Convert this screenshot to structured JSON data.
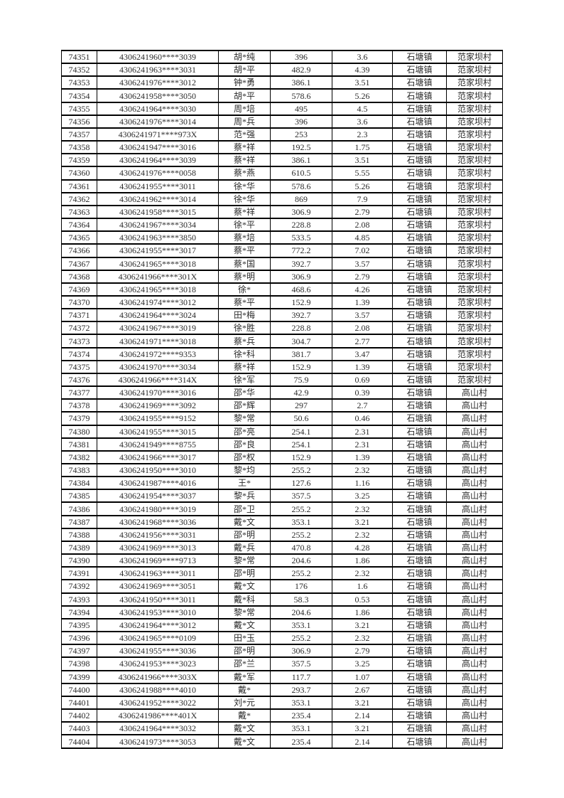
{
  "page": {
    "background_color": "#ffffff",
    "text_color": "#2b2b2b",
    "border_color": "#000000"
  },
  "table": {
    "column_names": [
      "serial-number",
      "id-number",
      "name",
      "amount",
      "secondary-value",
      "town",
      "village"
    ],
    "rows": [
      [
        "74351",
        "4306241960****3039",
        "胡*纯",
        "396",
        "3.6",
        "石塘镇",
        "范家坝村"
      ],
      [
        "74352",
        "4306241963****3031",
        "胡*平",
        "482.9",
        "4.39",
        "石塘镇",
        "范家坝村"
      ],
      [
        "74353",
        "4306241976****3012",
        "钟*勇",
        "386.1",
        "3.51",
        "石塘镇",
        "范家坝村"
      ],
      [
        "74354",
        "4306241958****3050",
        "胡*平",
        "578.6",
        "5.26",
        "石塘镇",
        "范家坝村"
      ],
      [
        "74355",
        "4306241964****3030",
        "周*培",
        "495",
        "4.5",
        "石塘镇",
        "范家坝村"
      ],
      [
        "74356",
        "4306241976****3014",
        "周*兵",
        "396",
        "3.6",
        "石塘镇",
        "范家坝村"
      ],
      [
        "74357",
        "4306241971****973X",
        "范*强",
        "253",
        "2.3",
        "石塘镇",
        "范家坝村"
      ],
      [
        "74358",
        "4306241947****3016",
        "蔡*祥",
        "192.5",
        "1.75",
        "石塘镇",
        "范家坝村"
      ],
      [
        "74359",
        "4306241964****3039",
        "蔡*祥",
        "386.1",
        "3.51",
        "石塘镇",
        "范家坝村"
      ],
      [
        "74360",
        "4306241976****0058",
        "蔡*燕",
        "610.5",
        "5.55",
        "石塘镇",
        "范家坝村"
      ],
      [
        "74361",
        "4306241955****3011",
        "徐*华",
        "578.6",
        "5.26",
        "石塘镇",
        "范家坝村"
      ],
      [
        "74362",
        "4306241962****3014",
        "徐*华",
        "869",
        "7.9",
        "石塘镇",
        "范家坝村"
      ],
      [
        "74363",
        "4306241958****3015",
        "蔡*祥",
        "306.9",
        "2.79",
        "石塘镇",
        "范家坝村"
      ],
      [
        "74364",
        "4306241967****3034",
        "徐*平",
        "228.8",
        "2.08",
        "石塘镇",
        "范家坝村"
      ],
      [
        "74365",
        "4306241963****3850",
        "蔡*培",
        "533.5",
        "4.85",
        "石塘镇",
        "范家坝村"
      ],
      [
        "74366",
        "4306241955****3017",
        "蔡*平",
        "772.2",
        "7.02",
        "石塘镇",
        "范家坝村"
      ],
      [
        "74367",
        "4306241965****3018",
        "蔡*国",
        "392.7",
        "3.57",
        "石塘镇",
        "范家坝村"
      ],
      [
        "74368",
        "4306241966****301X",
        "蔡*明",
        "306.9",
        "2.79",
        "石塘镇",
        "范家坝村"
      ],
      [
        "74369",
        "4306241965****3018",
        "徐*",
        "468.6",
        "4.26",
        "石塘镇",
        "范家坝村"
      ],
      [
        "74370",
        "4306241974****3012",
        "蔡*平",
        "152.9",
        "1.39",
        "石塘镇",
        "范家坝村"
      ],
      [
        "74371",
        "4306241964****3024",
        "田*梅",
        "392.7",
        "3.57",
        "石塘镇",
        "范家坝村"
      ],
      [
        "74372",
        "4306241967****3019",
        "徐*胜",
        "228.8",
        "2.08",
        "石塘镇",
        "范家坝村"
      ],
      [
        "74373",
        "4306241971****3018",
        "蔡*兵",
        "304.7",
        "2.77",
        "石塘镇",
        "范家坝村"
      ],
      [
        "74374",
        "4306241972****9353",
        "徐*科",
        "381.7",
        "3.47",
        "石塘镇",
        "范家坝村"
      ],
      [
        "74375",
        "4306241970****3034",
        "蔡*祥",
        "152.9",
        "1.39",
        "石塘镇",
        "范家坝村"
      ],
      [
        "74376",
        "4306241966****314X",
        "徐*军",
        "75.9",
        "0.69",
        "石塘镇",
        "范家坝村"
      ],
      [
        "74377",
        "4306241970****3016",
        "邵*华",
        "42.9",
        "0.39",
        "石塘镇",
        "高山村"
      ],
      [
        "74378",
        "4306241969****3092",
        "邵*辉",
        "297",
        "2.7",
        "石塘镇",
        "高山村"
      ],
      [
        "74379",
        "4306241955****9152",
        "黎*常",
        "50.6",
        "0.46",
        "石塘镇",
        "高山村"
      ],
      [
        "74380",
        "4306241955****3015",
        "邵*亮",
        "254.1",
        "2.31",
        "石塘镇",
        "高山村"
      ],
      [
        "74381",
        "4306241949****8755",
        "邵*良",
        "254.1",
        "2.31",
        "石塘镇",
        "高山村"
      ],
      [
        "74382",
        "4306241966****3017",
        "邵*权",
        "152.9",
        "1.39",
        "石塘镇",
        "高山村"
      ],
      [
        "74383",
        "4306241950****3010",
        "黎*均",
        "255.2",
        "2.32",
        "石塘镇",
        "高山村"
      ],
      [
        "74384",
        "4306241987****4016",
        "王*",
        "127.6",
        "1.16",
        "石塘镇",
        "高山村"
      ],
      [
        "74385",
        "4306241954****3037",
        "黎*兵",
        "357.5",
        "3.25",
        "石塘镇",
        "高山村"
      ],
      [
        "74386",
        "4306241980****3019",
        "邵*卫",
        "255.2",
        "2.32",
        "石塘镇",
        "高山村"
      ],
      [
        "74387",
        "4306241968****3036",
        "戴*文",
        "353.1",
        "3.21",
        "石塘镇",
        "高山村"
      ],
      [
        "74388",
        "4306241956****3031",
        "邵*明",
        "255.2",
        "2.32",
        "石塘镇",
        "高山村"
      ],
      [
        "74389",
        "4306241969****3013",
        "戴*兵",
        "470.8",
        "4.28",
        "石塘镇",
        "高山村"
      ],
      [
        "74390",
        "4306241969****9713",
        "黎*常",
        "204.6",
        "1.86",
        "石塘镇",
        "高山村"
      ],
      [
        "74391",
        "4306241963****3011",
        "邵*明",
        "255.2",
        "2.32",
        "石塘镇",
        "高山村"
      ],
      [
        "74392",
        "4306241969****3051",
        "戴*文",
        "176",
        "1.6",
        "石塘镇",
        "高山村"
      ],
      [
        "74393",
        "4306241950****3011",
        "戴*科",
        "58.3",
        "0.53",
        "石塘镇",
        "高山村"
      ],
      [
        "74394",
        "4306241953****3010",
        "黎*常",
        "204.6",
        "1.86",
        "石塘镇",
        "高山村"
      ],
      [
        "74395",
        "4306241964****3012",
        "戴*文",
        "353.1",
        "3.21",
        "石塘镇",
        "高山村"
      ],
      [
        "74396",
        "4306241965****0109",
        "田*玉",
        "255.2",
        "2.32",
        "石塘镇",
        "高山村"
      ],
      [
        "74397",
        "4306241955****3036",
        "邵*明",
        "306.9",
        "2.79",
        "石塘镇",
        "高山村"
      ],
      [
        "74398",
        "4306241953****3023",
        "邵*兰",
        "357.5",
        "3.25",
        "石塘镇",
        "高山村"
      ],
      [
        "74399",
        "4306241966****303X",
        "戴*军",
        "117.7",
        "1.07",
        "石塘镇",
        "高山村"
      ],
      [
        "74400",
        "4306241988****4010",
        "戴*",
        "293.7",
        "2.67",
        "石塘镇",
        "高山村"
      ],
      [
        "74401",
        "4306241952****3022",
        "刘*元",
        "353.1",
        "3.21",
        "石塘镇",
        "高山村"
      ],
      [
        "74402",
        "4306241986****401X",
        "戴*",
        "235.4",
        "2.14",
        "石塘镇",
        "高山村"
      ],
      [
        "74403",
        "4306241964****3032",
        "戴*文",
        "353.1",
        "3.21",
        "石塘镇",
        "高山村"
      ],
      [
        "74404",
        "4306241973****3053",
        "戴*文",
        "235.4",
        "2.14",
        "石塘镇",
        "高山村"
      ]
    ]
  }
}
